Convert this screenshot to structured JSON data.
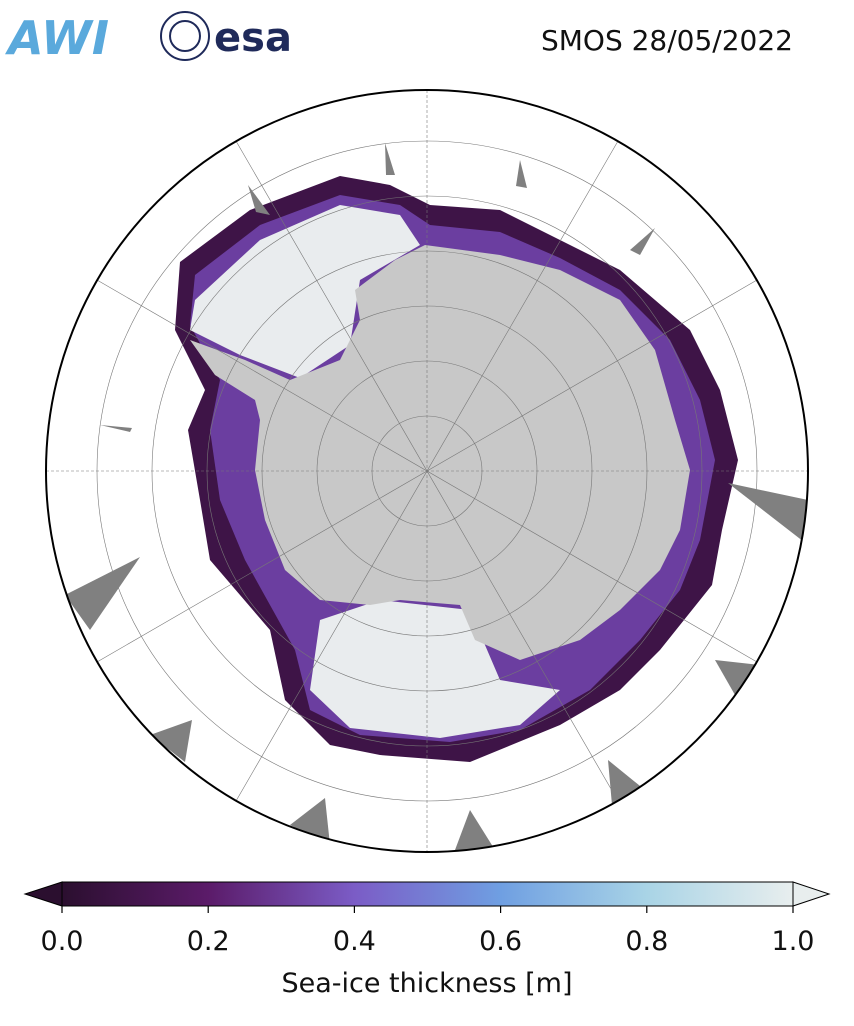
{
  "header": {
    "logos": [
      "AWI",
      "esa"
    ],
    "title": "SMOS 28/05/2022"
  },
  "colorbar": {
    "label": "Sea-ice thickness [m]",
    "lim": [
      0,
      1
    ],
    "ticks": [
      {
        "value": 0,
        "label": "0.0"
      },
      {
        "value": 0.2,
        "label": "0.2"
      },
      {
        "value": 0.4,
        "label": "0.4"
      },
      {
        "value": 0.6,
        "label": "0.6"
      },
      {
        "value": 0.8,
        "label": "0.8"
      },
      {
        "value": 1,
        "label": "1.0"
      }
    ],
    "colors": [
      "#2b0f2f",
      "#5b1b69",
      "#7b5cc6",
      "#6f9fe2",
      "#a9d4e6",
      "#e8eeee"
    ]
  }
}
